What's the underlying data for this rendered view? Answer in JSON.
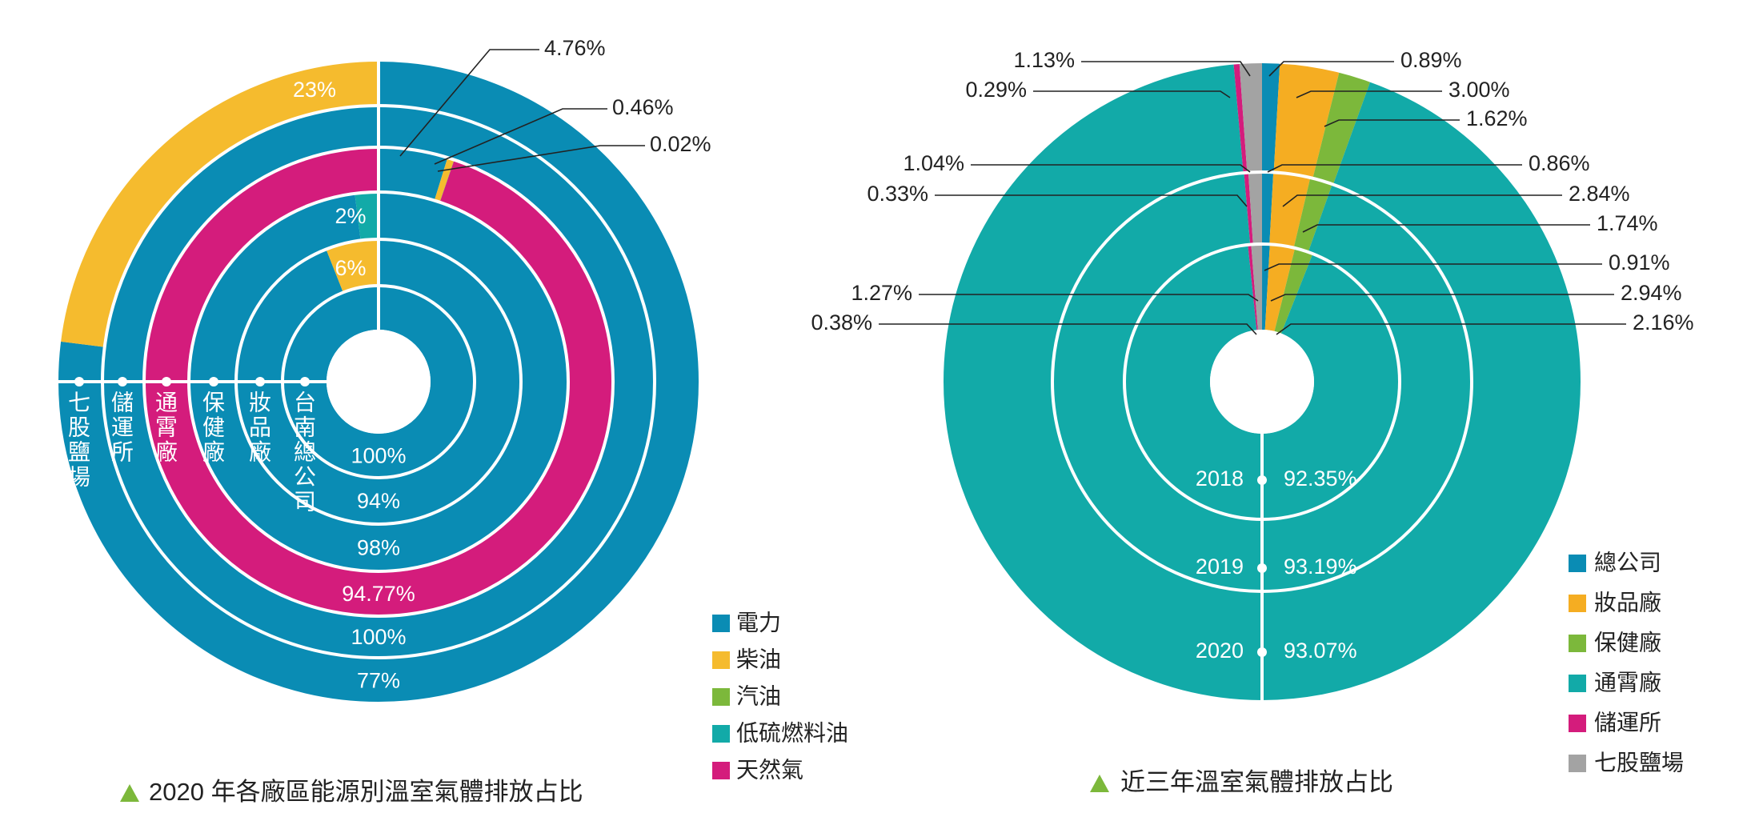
{
  "chart_data": [
    {
      "type": "pie",
      "variant": "multi-ring-donut",
      "title": "2020 年各廠區能源別溫室氣體排放占比",
      "rings_inner_to_outer": [
        "台南總公司",
        "妝品廠",
        "保健廠",
        "通霄廠",
        "儲運所",
        "七股鹽場"
      ],
      "series": [
        {
          "name": "電力",
          "color": "#0a8cb4"
        },
        {
          "name": "柴油",
          "color": "#f5bb2e"
        },
        {
          "name": "汽油",
          "color": "#7cb83b"
        },
        {
          "name": "低硫燃料油",
          "color": "#12aaa8"
        },
        {
          "name": "天然氣",
          "color": "#d41c7c"
        }
      ],
      "rings": [
        {
          "name": "台南總公司",
          "values": {
            "電力": 100
          },
          "label": "100%"
        },
        {
          "name": "妝品廠",
          "values": {
            "電力": 94,
            "柴油": 6
          },
          "label": "94%",
          "small_labels": [
            "6%"
          ]
        },
        {
          "name": "保健廠",
          "values": {
            "電力": 98,
            "低硫燃料油": 2
          },
          "label": "98%",
          "small_labels": [
            "2%"
          ]
        },
        {
          "name": "通霄廠",
          "values": {
            "電力": 4.76,
            "柴油": 0.46,
            "汽油": 0.02,
            "天然氣": 94.77
          },
          "label": "94.77%",
          "callouts": [
            "4.76%",
            "0.46%",
            "0.02%"
          ]
        },
        {
          "name": "儲運所",
          "values": {
            "電力": 100
          },
          "label": "100%"
        },
        {
          "name": "七股鹽場",
          "values": {
            "電力": 77,
            "柴油": 23
          },
          "label": "77%",
          "small_labels": [
            "23%"
          ]
        }
      ],
      "legend": [
        "電力",
        "柴油",
        "汽油",
        "低硫燃料油",
        "天然氣"
      ],
      "legend_position": "bottom-right"
    },
    {
      "type": "pie",
      "variant": "multi-ring-donut",
      "title": "近三年溫室氣體排放占比",
      "rings_inner_to_outer": [
        "2018",
        "2019",
        "2020"
      ],
      "series": [
        {
          "name": "總公司",
          "color": "#0a8cb4"
        },
        {
          "name": "妝品廠",
          "color": "#f5ad22"
        },
        {
          "name": "保健廠",
          "color": "#7cb83b"
        },
        {
          "name": "通霄廠",
          "color": "#12aaa8"
        },
        {
          "name": "儲運所",
          "color": "#d41c7c"
        },
        {
          "name": "七股鹽場",
          "color": "#a3a3a3"
        }
      ],
      "rings": [
        {
          "year": "2018",
          "values": {
            "總公司": 0.91,
            "妝品廠": 2.94,
            "保健廠": 2.16,
            "通霄廠": 92.35,
            "儲運所": 0.38,
            "七股鹽場": 1.27
          },
          "labels": {
            "總公司": "0.91%",
            "妝品廠": "2.94%",
            "保健廠": "2.16%",
            "通霄廠": "92.35%",
            "儲運所": "0.38%",
            "七股鹽場": "1.27%"
          }
        },
        {
          "year": "2019",
          "values": {
            "總公司": 0.86,
            "妝品廠": 2.84,
            "保健廠": 1.74,
            "通霄廠": 93.19,
            "儲運所": 0.33,
            "七股鹽場": 1.04
          },
          "labels": {
            "總公司": "0.86%",
            "妝品廠": "2.84%",
            "保健廠": "1.74%",
            "通霄廠": "93.19%",
            "儲運所": "0.33%",
            "七股鹽場": "1.04%"
          }
        },
        {
          "year": "2020",
          "values": {
            "總公司": 0.89,
            "妝品廠": 3.0,
            "保健廠": 1.62,
            "通霄廠": 93.07,
            "儲運所": 0.29,
            "七股鹽場": 1.13
          },
          "labels": {
            "總公司": "0.89%",
            "妝品廠": "3.00%",
            "保健廠": "1.62%",
            "通霄廠": "93.07%",
            "儲運所": "0.29%",
            "七股鹽場": "1.13%"
          }
        }
      ],
      "legend": [
        "總公司",
        "妝品廠",
        "保健廠",
        "通霄廠",
        "儲運所",
        "七股鹽場"
      ],
      "legend_position": "bottom-right"
    }
  ],
  "caption_marker_color": "#7cb83b"
}
